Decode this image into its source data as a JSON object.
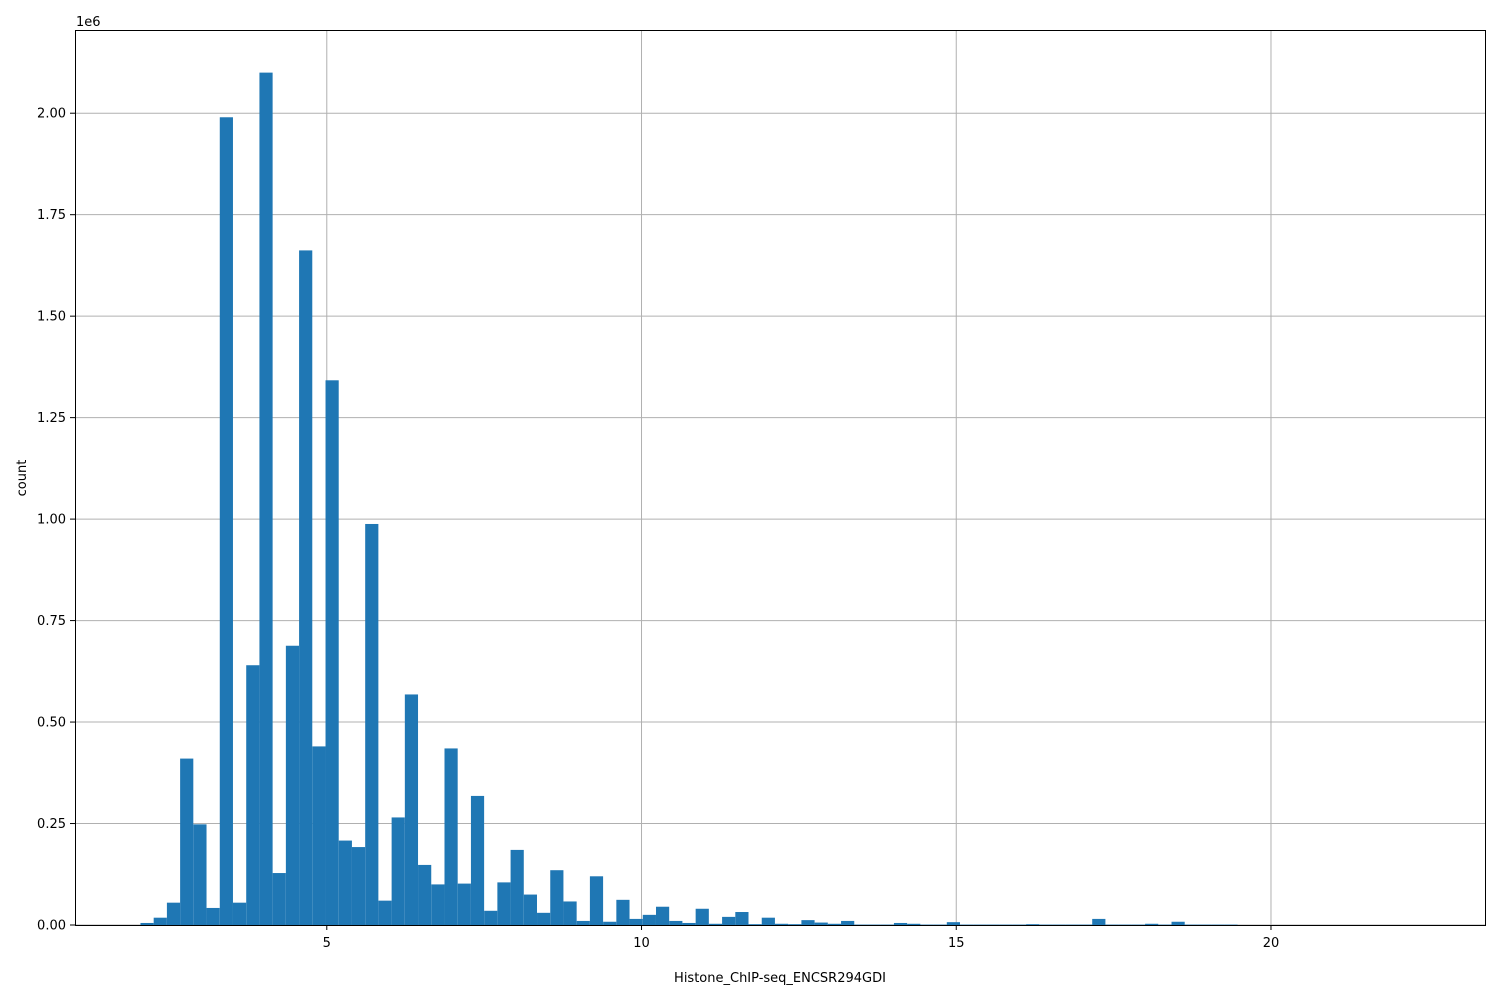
{
  "chart_data": {
    "type": "bar",
    "title": "",
    "xlabel": "Histone_ChIP-seq_ENCSR294GDI",
    "ylabel": "count",
    "y_offset_label": "1e6",
    "xlim": [
      1.0,
      23.4
    ],
    "ylim": [
      0,
      2.205
    ],
    "grid": true,
    "bin_width": 0.2095,
    "x_ticks": [
      {
        "value": 5,
        "label": "5"
      },
      {
        "value": 10,
        "label": "10"
      },
      {
        "value": 15,
        "label": "15"
      },
      {
        "value": 20,
        "label": "20"
      }
    ],
    "y_ticks": [
      {
        "value": 0,
        "label": "0.00"
      },
      {
        "value": 0.25,
        "label": "0.25"
      },
      {
        "value": 0.5,
        "label": "0.50"
      },
      {
        "value": 0.75,
        "label": "0.75"
      },
      {
        "value": 1.0,
        "label": "1.00"
      },
      {
        "value": 1.25,
        "label": "1.25"
      },
      {
        "value": 1.5,
        "label": "1.50"
      },
      {
        "value": 1.75,
        "label": "1.75"
      },
      {
        "value": 2.0,
        "label": "2.00"
      }
    ],
    "bins_start": [
      2.04,
      2.25,
      2.46,
      2.67,
      2.88,
      3.09,
      3.3,
      3.51,
      3.72,
      3.93,
      4.14,
      4.35,
      4.56,
      4.77,
      4.98,
      5.19,
      5.4,
      5.61,
      5.82,
      6.03,
      6.24,
      6.45,
      6.66,
      6.87,
      7.08,
      7.29,
      7.5,
      7.71,
      7.92,
      8.13,
      8.34,
      8.55,
      8.76,
      8.97,
      9.18,
      9.39,
      9.6,
      9.81,
      10.02,
      10.23,
      10.44,
      10.65,
      10.86,
      11.07,
      11.28,
      11.49,
      11.7,
      11.91,
      12.12,
      12.33,
      12.54,
      12.75,
      12.96,
      13.17,
      13.38,
      13.59,
      13.8,
      14.01,
      14.22,
      14.43,
      14.64,
      14.85,
      15.06,
      15.27,
      15.48,
      15.69,
      15.9,
      16.11,
      16.32,
      16.53,
      16.74,
      16.95,
      17.16,
      17.37,
      17.58,
      17.79,
      18.0,
      18.21,
      18.42,
      18.63,
      18.84,
      19.05,
      19.26
    ],
    "values": [
      0.005,
      0.018,
      0.055,
      0.41,
      0.248,
      0.042,
      1.99,
      0.055,
      0.64,
      2.1,
      0.128,
      0.688,
      1.662,
      0.44,
      1.342,
      0.208,
      0.192,
      0.988,
      0.06,
      0.265,
      0.568,
      0.148,
      0.1,
      0.435,
      0.102,
      0.318,
      0.035,
      0.105,
      0.185,
      0.075,
      0.03,
      0.135,
      0.058,
      0.01,
      0.12,
      0.008,
      0.062,
      0.015,
      0.025,
      0.045,
      0.01,
      0.005,
      0.04,
      0.003,
      0.02,
      0.032,
      0.002,
      0.018,
      0.003,
      0.002,
      0.012,
      0.006,
      0.003,
      0.01,
      0.001,
      0.001,
      0.001,
      0.005,
      0.003,
      0.001,
      0.001,
      0.007,
      0.001,
      0.001,
      0.001,
      0.001,
      0.001,
      0.002,
      0.001,
      0.001,
      0.001,
      0.001,
      0.015,
      0.001,
      0.001,
      0.001,
      0.003,
      0.001,
      0.008,
      0.001,
      0.001,
      0.001,
      0.001
    ]
  }
}
